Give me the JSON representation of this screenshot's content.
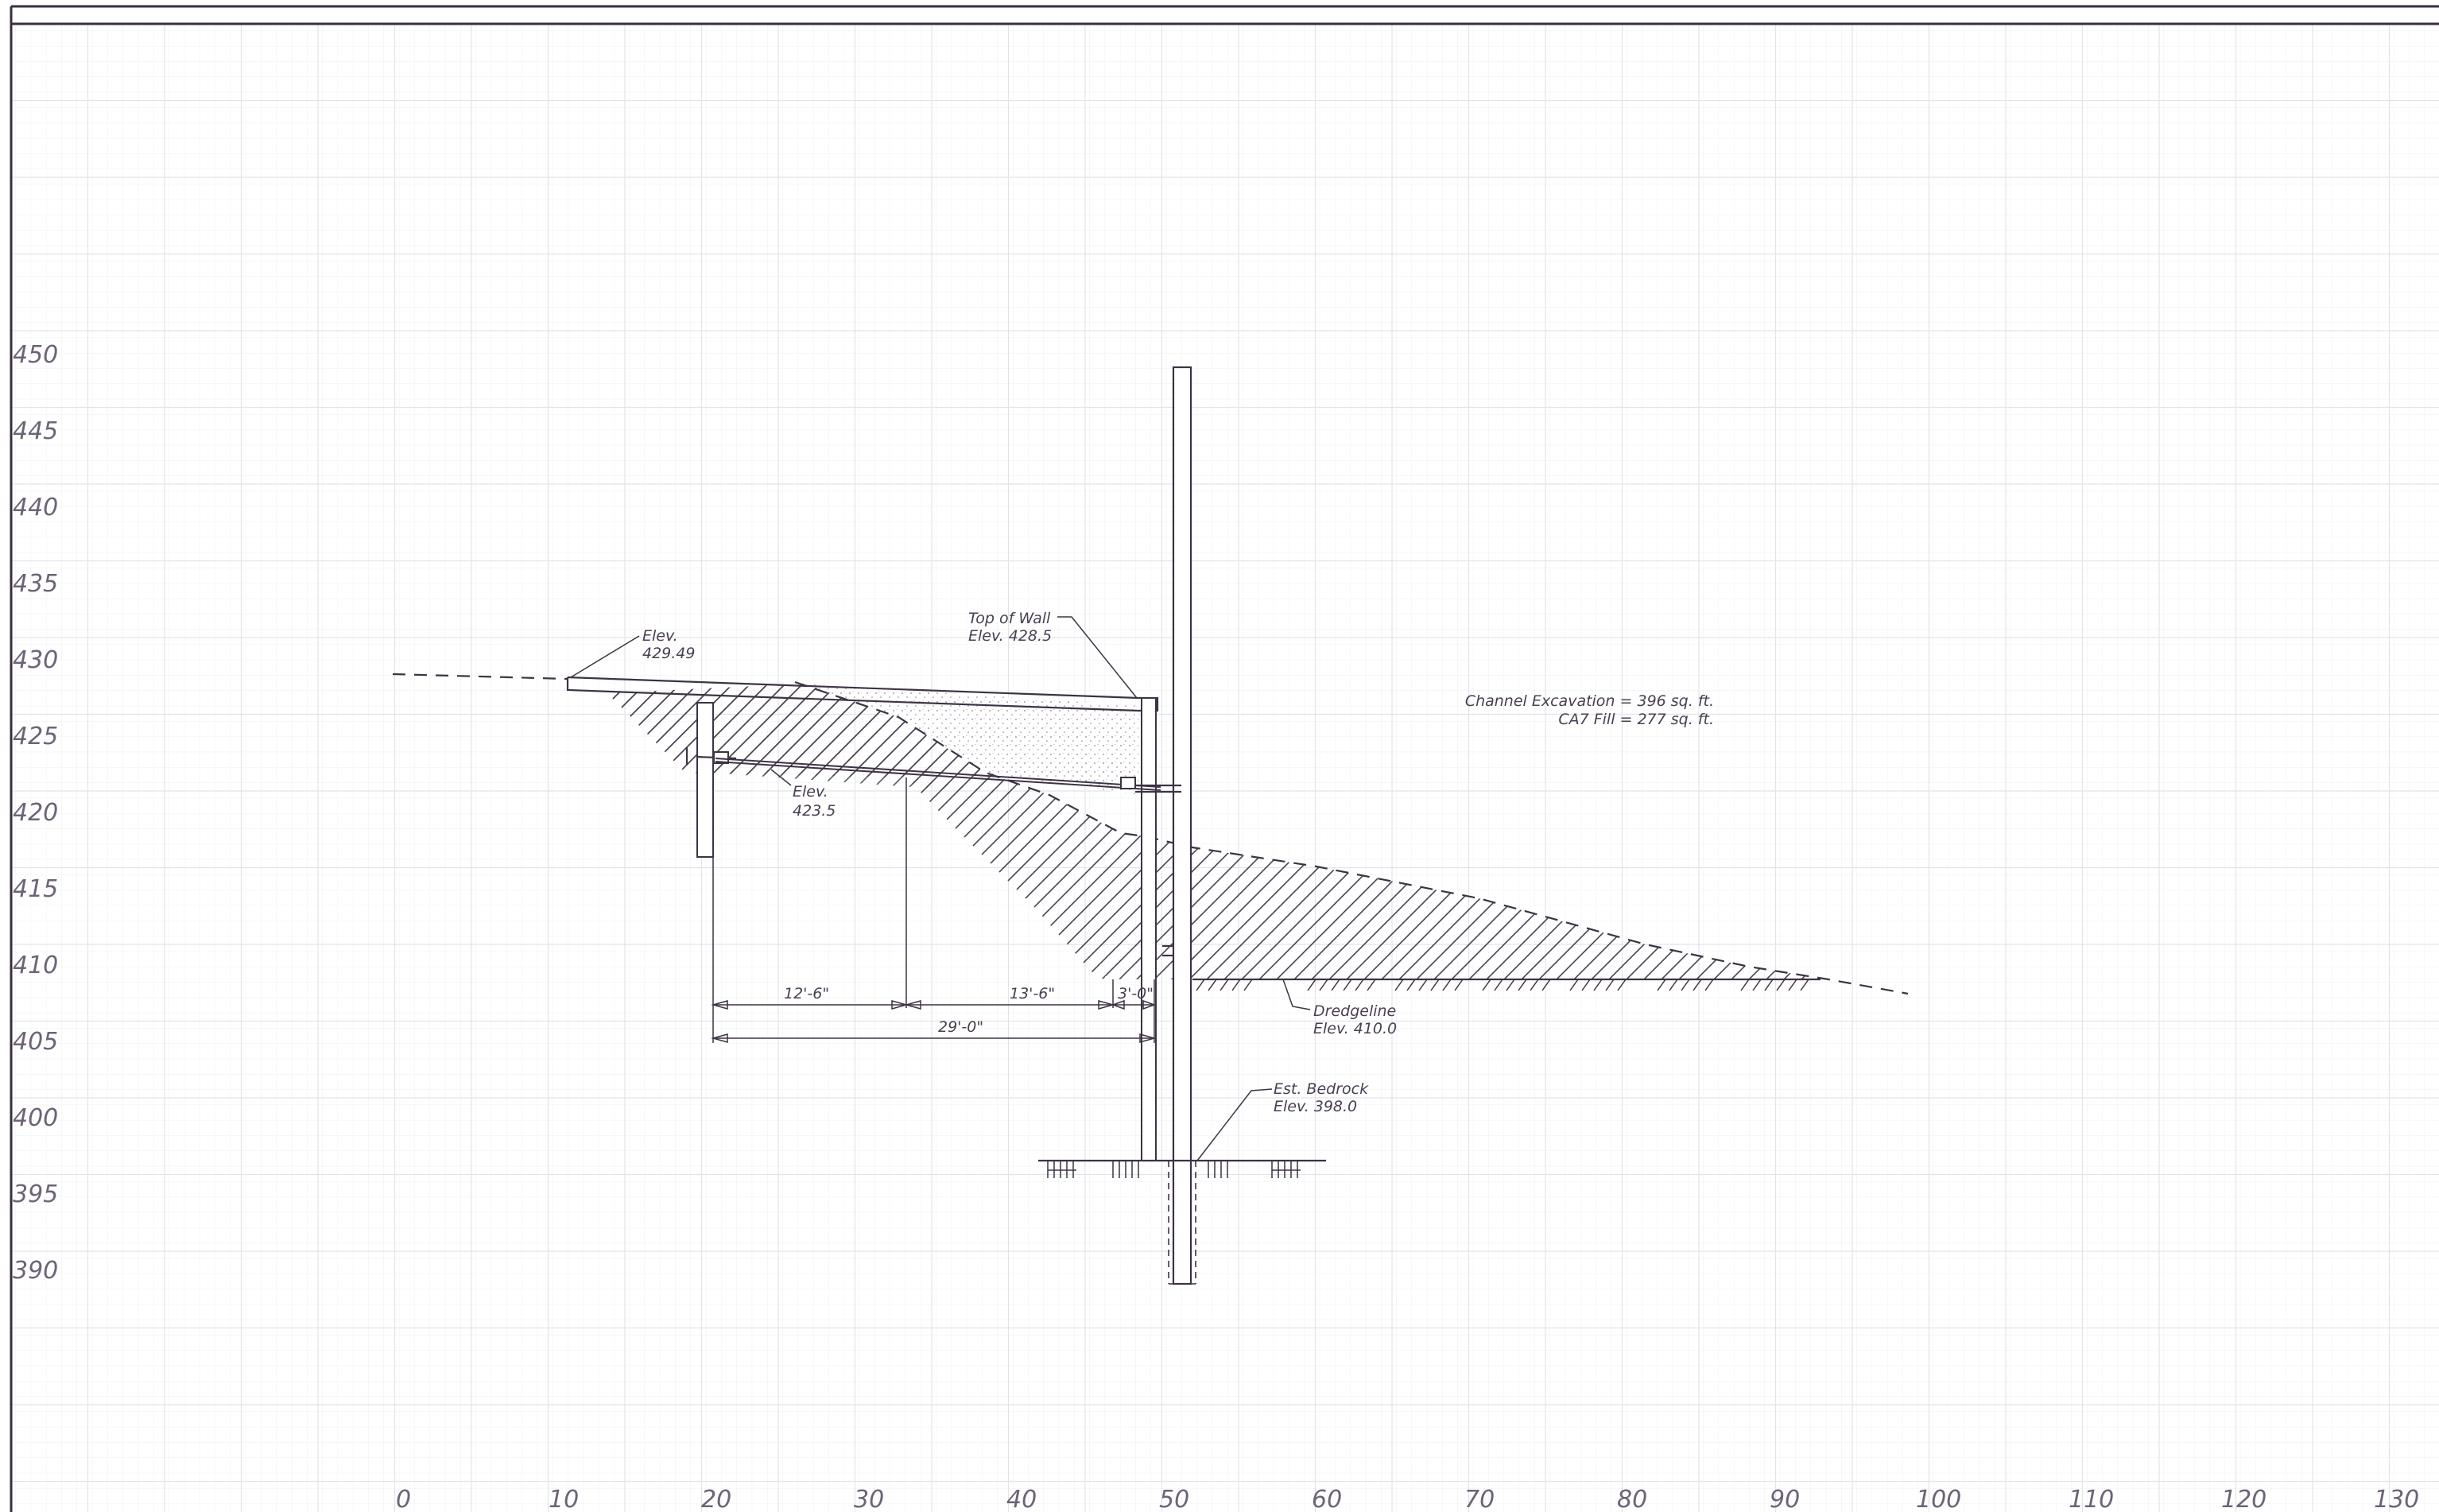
{
  "drawing": {
    "y_axis_labels": [
      "450",
      "445",
      "440",
      "435",
      "430",
      "425",
      "420",
      "415",
      "410",
      "405",
      "400",
      "395",
      "390"
    ],
    "x_axis_labels": [
      "0",
      "10",
      "20",
      "30",
      "40",
      "50",
      "60",
      "70",
      "80",
      "90",
      "100",
      "110",
      "120",
      "130"
    ],
    "labels": {
      "elev_top_left_line1": "Elev.",
      "elev_top_left_line2": "429.49",
      "top_of_wall_line1": "Top of Wall",
      "top_of_wall_line2": "Elev. 428.5",
      "elev_anchor_line1": "Elev.",
      "elev_anchor_line2": "423.5",
      "dredgeline_line1": "Dredgeline",
      "dredgeline_line2": "Elev. 410.0",
      "bedrock_line1": "Est. Bedrock",
      "bedrock_line2": "Elev. 398.0",
      "channel_excavation": "Channel Excavation = 396 sq. ft.",
      "ca7_fill": "CA7 Fill = 277 sq. ft."
    },
    "dimensions": {
      "dim_12_6": "12'-6\"",
      "dim_13_6": "13'-6\"",
      "dim_3_0": "3'-0\"",
      "dim_29_0": "29'-0\""
    }
  }
}
